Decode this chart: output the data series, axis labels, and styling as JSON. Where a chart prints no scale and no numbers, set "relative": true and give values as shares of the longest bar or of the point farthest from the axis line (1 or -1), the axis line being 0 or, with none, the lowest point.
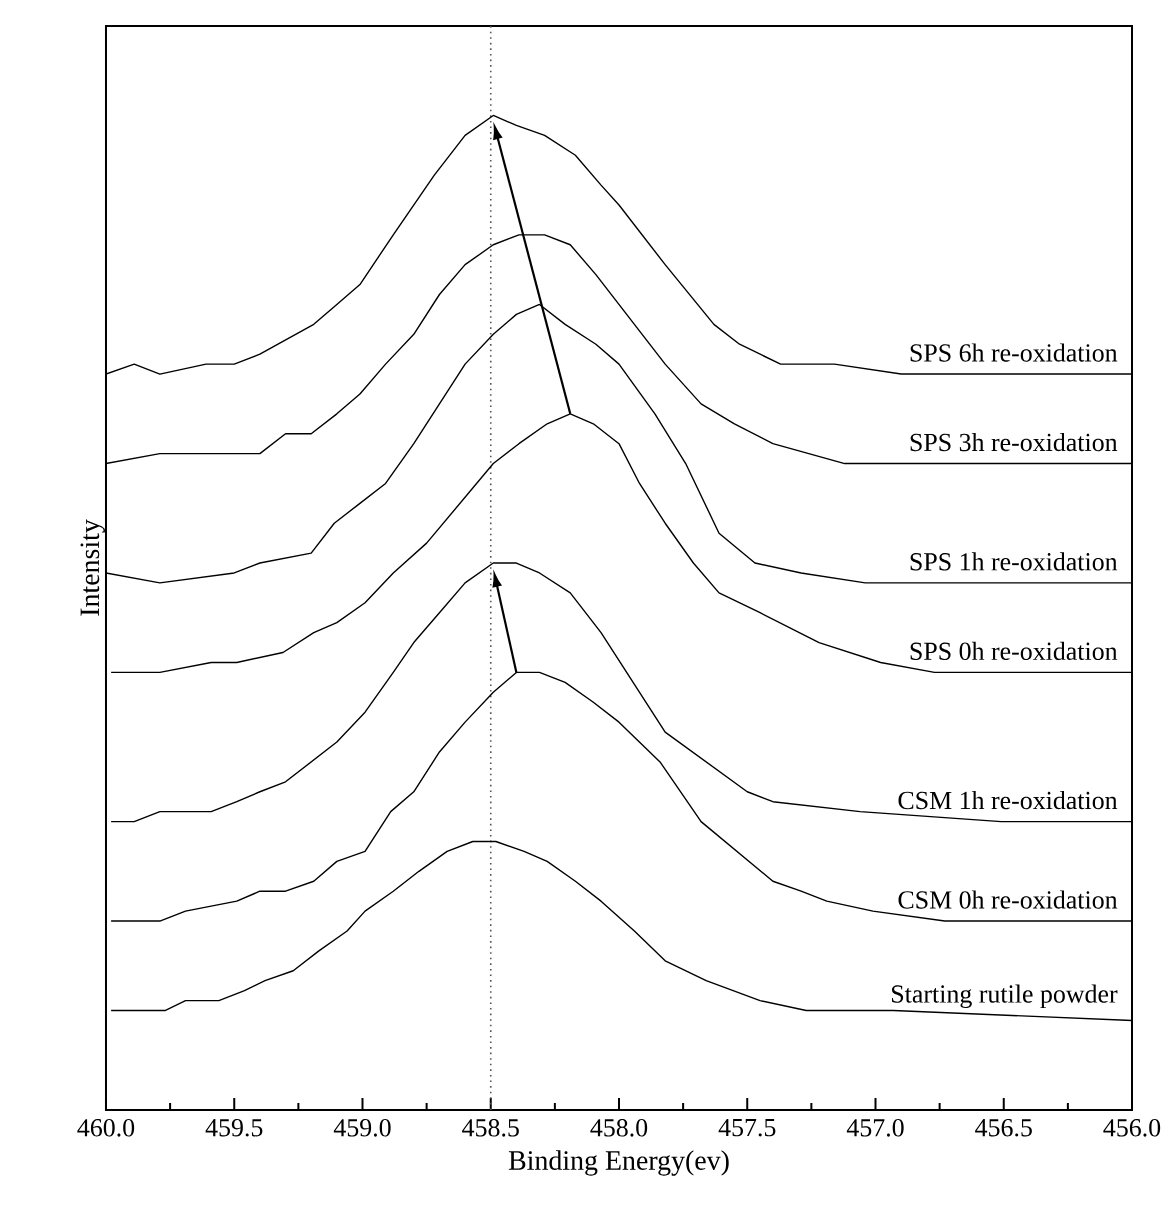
{
  "chart_data": {
    "type": "line",
    "relative": true,
    "xlabel": "Binding Energy(ev)",
    "ylabel": "Intensity",
    "xlim": [
      460.0,
      456.0
    ],
    "xticks": [
      {
        "value": 460.0,
        "label": "460.0"
      },
      {
        "value": 459.5,
        "label": "459.5"
      },
      {
        "value": 459.0,
        "label": "459.0"
      },
      {
        "value": 458.5,
        "label": "458.5"
      },
      {
        "value": 458.0,
        "label": "458.0"
      },
      {
        "value": 457.5,
        "label": "457.5"
      },
      {
        "value": 457.0,
        "label": "457.0"
      },
      {
        "value": 456.5,
        "label": "456.5"
      },
      {
        "value": 456.0,
        "label": "456.0"
      }
    ],
    "legend": false,
    "grid": false,
    "marker": "none",
    "line_style": "solid",
    "ref_lines": [
      {
        "axis": "x",
        "value": 458.5,
        "line_style": "dotted",
        "color": "#555555"
      }
    ],
    "series": [
      {
        "name": "SPS 6h re-oxidation",
        "color": "#000000",
        "x": [
          460.0,
          459.89,
          459.79,
          459.61,
          459.5,
          459.4,
          459.19,
          459.1,
          459.01,
          458.88,
          458.72,
          458.6,
          458.49,
          458.4,
          458.29,
          458.17,
          458.07,
          458.0,
          457.82,
          457.63,
          457.53,
          457.37,
          457.16,
          456.9,
          456.65,
          456.38,
          456.0
        ],
        "values": [
          0.74,
          0.75,
          0.74,
          0.75,
          0.75,
          0.76,
          0.79,
          0.81,
          0.83,
          0.88,
          0.94,
          0.98,
          1.0,
          0.99,
          0.98,
          0.96,
          0.93,
          0.91,
          0.85,
          0.79,
          0.77,
          0.75,
          0.75,
          0.74,
          0.74,
          0.74,
          0.74
        ]
      },
      {
        "name": "SPS 3h re-oxidation",
        "color": "#000000",
        "x": [
          460.0,
          459.79,
          459.5,
          459.4,
          459.3,
          459.2,
          459.1,
          459.01,
          458.91,
          458.8,
          458.7,
          458.6,
          458.49,
          458.39,
          458.29,
          458.19,
          458.09,
          458.0,
          457.82,
          457.68,
          457.55,
          457.4,
          457.12,
          456.77,
          456.0
        ],
        "values": [
          0.65,
          0.66,
          0.66,
          0.66,
          0.68,
          0.68,
          0.7,
          0.72,
          0.75,
          0.78,
          0.82,
          0.85,
          0.87,
          0.88,
          0.88,
          0.87,
          0.84,
          0.81,
          0.75,
          0.71,
          0.69,
          0.67,
          0.65,
          0.65,
          0.65
        ]
      },
      {
        "name": "SPS 1h re-oxidation",
        "color": "#000000",
        "x": [
          460.0,
          459.79,
          459.5,
          459.4,
          459.2,
          459.11,
          459.01,
          458.91,
          458.8,
          458.7,
          458.6,
          458.49,
          458.4,
          458.31,
          458.21,
          458.09,
          458.0,
          457.86,
          457.74,
          457.61,
          457.47,
          457.29,
          457.04,
          456.8,
          456.51,
          456.26,
          456.0
        ],
        "values": [
          0.54,
          0.53,
          0.54,
          0.55,
          0.56,
          0.59,
          0.61,
          0.63,
          0.67,
          0.71,
          0.75,
          0.78,
          0.8,
          0.81,
          0.79,
          0.77,
          0.75,
          0.7,
          0.65,
          0.58,
          0.55,
          0.54,
          0.53,
          0.53,
          0.53,
          0.53,
          0.53
        ]
      },
      {
        "name": "SPS 0h re-oxidation",
        "color": "#000000",
        "x": [
          459.98,
          459.79,
          459.59,
          459.49,
          459.31,
          459.19,
          459.1,
          458.99,
          458.88,
          458.75,
          458.62,
          458.49,
          458.39,
          458.28,
          458.19,
          458.1,
          458.0,
          457.92,
          457.82,
          457.71,
          457.61,
          457.45,
          457.22,
          456.98,
          456.77,
          456.46,
          456.0
        ],
        "values": [
          0.44,
          0.44,
          0.45,
          0.45,
          0.46,
          0.48,
          0.49,
          0.51,
          0.54,
          0.57,
          0.61,
          0.65,
          0.67,
          0.69,
          0.7,
          0.69,
          0.67,
          0.63,
          0.59,
          0.55,
          0.52,
          0.5,
          0.47,
          0.45,
          0.44,
          0.44,
          0.44
        ]
      },
      {
        "name": "CSM 1h re-oxidation",
        "color": "#000000",
        "x": [
          459.98,
          459.89,
          459.79,
          459.59,
          459.49,
          459.4,
          459.3,
          459.2,
          459.1,
          458.99,
          458.88,
          458.8,
          458.7,
          458.6,
          458.49,
          458.4,
          458.31,
          458.19,
          458.07,
          457.82,
          457.5,
          457.4,
          457.06,
          456.51,
          456.0
        ],
        "values": [
          0.29,
          0.29,
          0.3,
          0.3,
          0.31,
          0.32,
          0.33,
          0.35,
          0.37,
          0.4,
          0.44,
          0.47,
          0.5,
          0.53,
          0.55,
          0.55,
          0.54,
          0.52,
          0.48,
          0.38,
          0.32,
          0.31,
          0.3,
          0.29,
          0.29
        ]
      },
      {
        "name": "CSM 0h re-oxidation",
        "color": "#000000",
        "x": [
          459.98,
          459.79,
          459.69,
          459.49,
          459.4,
          459.3,
          459.19,
          459.1,
          458.99,
          458.89,
          458.8,
          458.7,
          458.6,
          458.49,
          458.4,
          458.31,
          458.21,
          458.1,
          458.0,
          457.84,
          457.68,
          457.4,
          457.29,
          457.19,
          457.01,
          456.73,
          456.0
        ],
        "values": [
          0.19,
          0.19,
          0.2,
          0.21,
          0.22,
          0.22,
          0.23,
          0.25,
          0.26,
          0.3,
          0.32,
          0.36,
          0.39,
          0.42,
          0.44,
          0.44,
          0.43,
          0.41,
          0.39,
          0.35,
          0.29,
          0.23,
          0.22,
          0.21,
          0.2,
          0.19,
          0.19
        ]
      },
      {
        "name": "Starting rutile powder",
        "color": "#000000",
        "x": [
          459.98,
          459.77,
          459.69,
          459.56,
          459.46,
          459.38,
          459.27,
          459.17,
          459.06,
          458.99,
          458.88,
          458.78,
          458.67,
          458.57,
          458.48,
          458.37,
          458.28,
          458.17,
          458.07,
          457.94,
          457.82,
          457.66,
          457.45,
          457.27,
          456.93,
          456.0
        ],
        "values": [
          0.1,
          0.1,
          0.11,
          0.11,
          0.12,
          0.13,
          0.14,
          0.16,
          0.18,
          0.2,
          0.22,
          0.24,
          0.26,
          0.27,
          0.27,
          0.26,
          0.25,
          0.23,
          0.21,
          0.18,
          0.15,
          0.13,
          0.11,
          0.1,
          0.1,
          0.09
        ]
      }
    ]
  }
}
